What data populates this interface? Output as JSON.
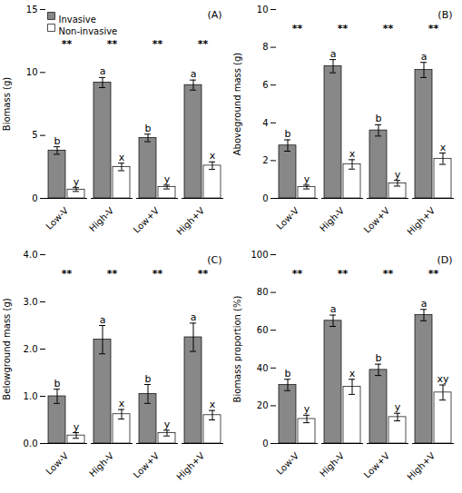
{
  "chart_data": [
    {
      "type": "bar",
      "title": "(A)",
      "ylabel": "Biomass (g)",
      "categories": [
        "Low-V",
        "High-V",
        "Low+V",
        "High+V"
      ],
      "series": [
        {
          "name": "Invasive",
          "color": "#888888",
          "values": [
            3.8,
            9.2,
            4.8,
            9.0
          ],
          "errors": [
            0.3,
            0.4,
            0.3,
            0.4
          ],
          "letters": [
            "b",
            "a",
            "b",
            "a"
          ]
        },
        {
          "name": "Non-invasive",
          "color": "#ffffff",
          "values": [
            0.7,
            2.5,
            0.9,
            2.6
          ],
          "errors": [
            0.15,
            0.3,
            0.15,
            0.3
          ],
          "letters": [
            "y",
            "x",
            "y",
            "x"
          ]
        }
      ],
      "annotations": [
        "**",
        "**",
        "**",
        "**"
      ],
      "ylim": [
        0,
        15
      ],
      "yticks": [
        0,
        5,
        10,
        15
      ],
      "legend": "upper left"
    },
    {
      "type": "bar",
      "title": "(B)",
      "ylabel": "Aboveground mass (g)",
      "categories": [
        "Low-V",
        "High-V",
        "Low+V",
        "High+V"
      ],
      "series": [
        {
          "name": "Invasive",
          "color": "#888888",
          "values": [
            2.8,
            7.0,
            3.6,
            6.8
          ],
          "errors": [
            0.3,
            0.35,
            0.3,
            0.4
          ],
          "letters": [
            "b",
            "a",
            "b",
            "a"
          ]
        },
        {
          "name": "Non-invasive",
          "color": "#ffffff",
          "values": [
            0.6,
            1.8,
            0.8,
            2.1
          ],
          "errors": [
            0.1,
            0.25,
            0.15,
            0.3
          ],
          "letters": [
            "y",
            "x",
            "y",
            "x"
          ]
        }
      ],
      "annotations": [
        "**",
        "**",
        "**",
        "**"
      ],
      "ylim": [
        0,
        10
      ],
      "yticks": [
        0,
        2,
        4,
        6,
        8,
        10
      ]
    },
    {
      "type": "bar",
      "title": "(C)",
      "ylabel": "Belowground mass (g)",
      "categories": [
        "Low-V",
        "High-V",
        "Low+V",
        "High+V"
      ],
      "series": [
        {
          "name": "Invasive",
          "color": "#888888",
          "values": [
            1.0,
            2.2,
            1.05,
            2.25
          ],
          "errors": [
            0.15,
            0.3,
            0.2,
            0.3
          ],
          "letters": [
            "b",
            "a",
            "b",
            "a"
          ]
        },
        {
          "name": "Non-invasive",
          "color": "#ffffff",
          "values": [
            0.17,
            0.62,
            0.22,
            0.6
          ],
          "errors": [
            0.06,
            0.1,
            0.06,
            0.1
          ],
          "letters": [
            "y",
            "x",
            "y",
            "x"
          ]
        }
      ],
      "annotations": [
        "**",
        "**",
        "**",
        "**"
      ],
      "ylim": [
        0,
        4
      ],
      "yticks": [
        0,
        1,
        2,
        3,
        4
      ]
    },
    {
      "type": "bar",
      "title": "(D)",
      "ylabel": "Biomass proportion (%)",
      "categories": [
        "Low-V",
        "High-V",
        "Low+V",
        "High+V"
      ],
      "series": [
        {
          "name": "Invasive",
          "color": "#888888",
          "values": [
            31,
            65,
            39,
            68
          ],
          "errors": [
            3,
            3,
            3,
            3
          ],
          "letters": [
            "b",
            "a",
            "b",
            "a"
          ]
        },
        {
          "name": "Non-invasive",
          "color": "#ffffff",
          "values": [
            13,
            30,
            14,
            27
          ],
          "errors": [
            2,
            4,
            2,
            4
          ],
          "letters": [
            "y",
            "x",
            "y",
            "xy"
          ]
        }
      ],
      "annotations": [
        "**",
        "**",
        "**",
        "**"
      ],
      "ylim": [
        0,
        100
      ],
      "yticks": [
        0,
        20,
        40,
        60,
        80,
        100
      ]
    }
  ]
}
